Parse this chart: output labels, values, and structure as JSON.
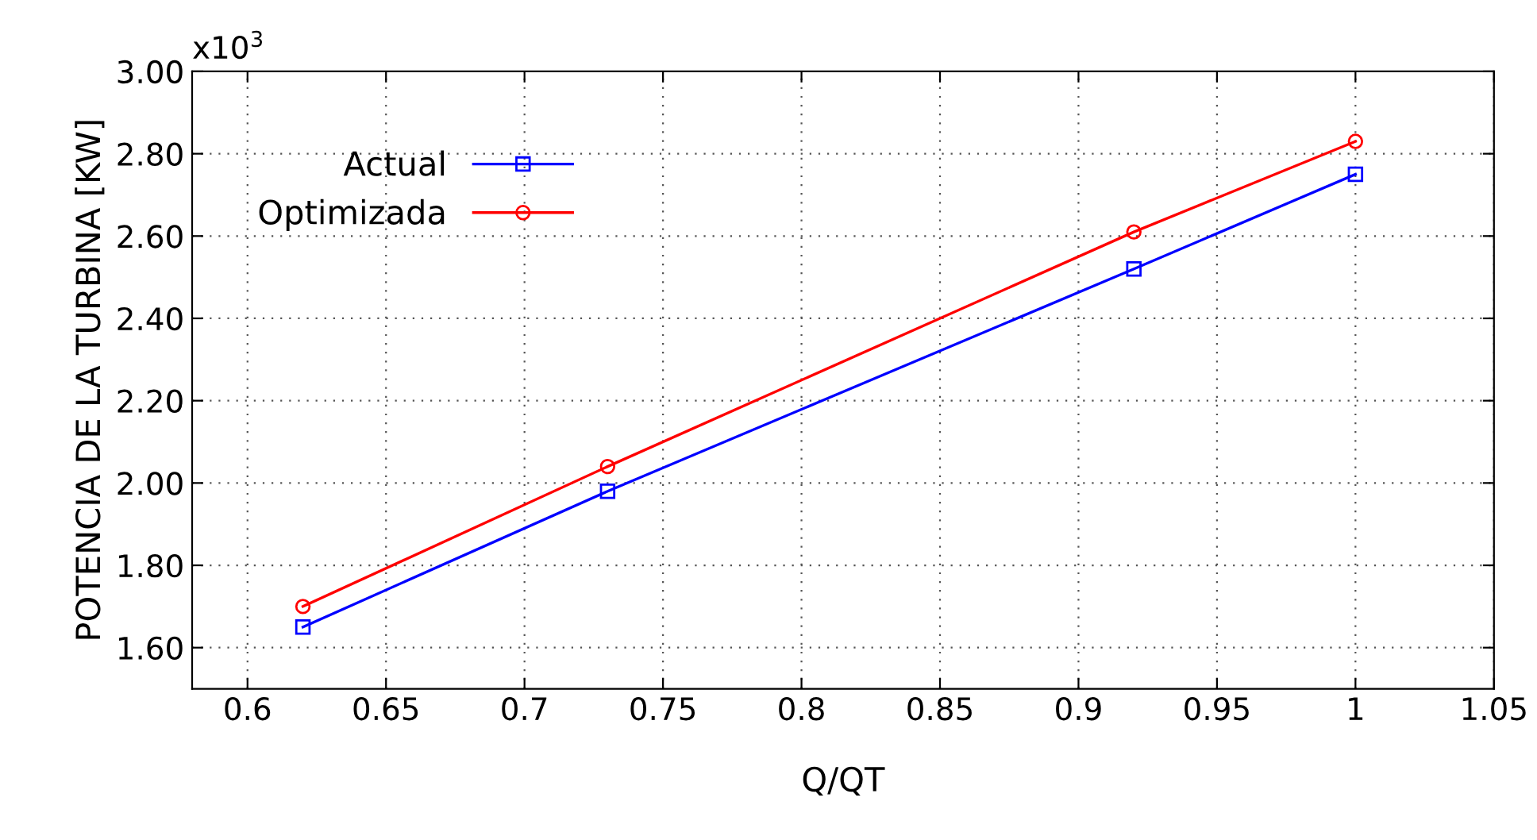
{
  "chart_data": {
    "type": "line",
    "xlabel": "Q/QT",
    "ylabel": "POTENCIA DE LA TURBINA [KW]",
    "annotations": [
      "x10$^{3}$"
    ],
    "x": [
      0.62,
      0.73,
      0.92,
      1.0
    ],
    "series": [
      {
        "name": "Actual",
        "color": "#0000ff",
        "marker": "square",
        "values": [
          1.65,
          1.98,
          2.52,
          2.75
        ]
      },
      {
        "name": "Optimizada",
        "color": "#ff0000",
        "marker": "circle",
        "values": [
          1.7,
          2.04,
          2.61,
          2.83
        ]
      }
    ],
    "xlim": [
      0.58,
      1.05
    ],
    "xticks": [
      0.6,
      0.65,
      0.7,
      0.75,
      0.8,
      0.85,
      0.9,
      0.95,
      1,
      1.05
    ],
    "ylim": [
      1.5,
      3.0
    ],
    "yticks": [
      {
        "value": 1.6,
        "label": "1.60"
      },
      {
        "value": 1.8,
        "label": "1.80"
      },
      {
        "value": 2.0,
        "label": "2.00"
      },
      {
        "value": 2.2,
        "label": "2.20"
      },
      {
        "value": 2.4,
        "label": "2.40"
      },
      {
        "value": 2.6,
        "label": "2.60"
      },
      {
        "value": 2.8,
        "label": "2.80"
      },
      {
        "value": 3.0,
        "label": "3.00"
      }
    ],
    "grid": true,
    "legend": "top left",
    "line_style": "solid"
  }
}
